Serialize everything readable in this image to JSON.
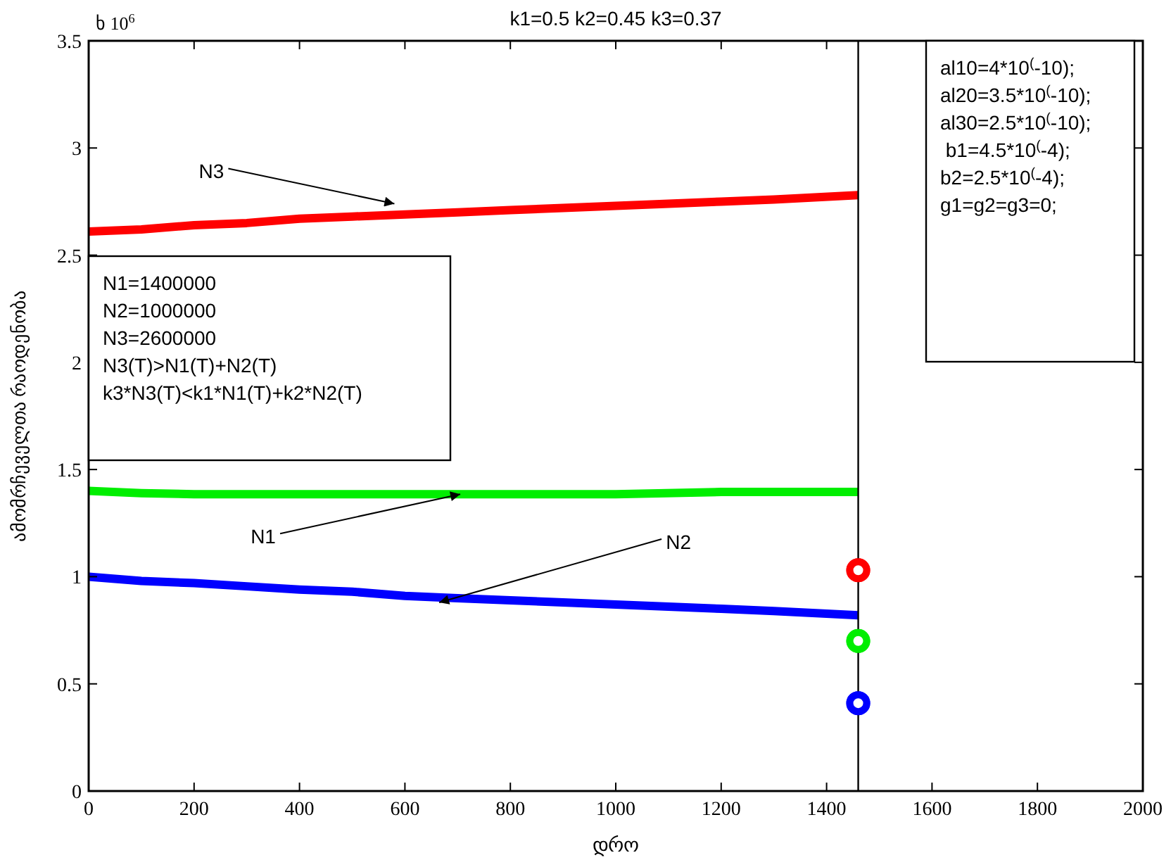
{
  "chart_data": {
    "type": "line",
    "title": "k1=0.5 k2=0.45 k3=0.37",
    "xlabel": "დრო",
    "ylabel": "ამომრჩეველთა რაოდენობა",
    "xlim": [
      0,
      2000
    ],
    "xticks": [
      0,
      200,
      400,
      600,
      800,
      1000,
      1200,
      1400,
      1600,
      1800,
      2000
    ],
    "ylim": [
      0,
      3.5
    ],
    "yticks": [
      0,
      0.5,
      1,
      1.5,
      2,
      2.5,
      3,
      3.5
    ],
    "grid": false,
    "line_style": "solid",
    "series": [
      {
        "color": "#ff0000",
        "x": [
          0,
          100,
          200,
          300,
          400,
          500,
          600,
          700,
          800,
          900,
          1000,
          1100,
          1200,
          1300,
          1460
        ],
        "values": [
          2.61,
          2.62,
          2.64,
          2.65,
          2.67,
          2.68,
          2.69,
          2.7,
          2.71,
          2.72,
          2.73,
          2.74,
          2.75,
          2.76,
          2.78
        ]
      },
      {
        "color": "#00ee00",
        "x": [
          0,
          100,
          200,
          400,
          600,
          800,
          1000,
          1200,
          1460
        ],
        "values": [
          1.4,
          1.39,
          1.385,
          1.385,
          1.385,
          1.385,
          1.385,
          1.395,
          1.395
        ]
      },
      {
        "color": "#0000ff",
        "x": [
          0,
          100,
          200,
          300,
          400,
          500,
          600,
          700,
          800,
          900,
          1000,
          1100,
          1200,
          1300,
          1460
        ],
        "values": [
          1.0,
          0.98,
          0.97,
          0.955,
          0.94,
          0.93,
          0.91,
          0.9,
          0.89,
          0.88,
          0.87,
          0.86,
          0.85,
          0.84,
          0.82
        ]
      },
      {
        "type": "scatter",
        "marker": "circle",
        "x": [
          1460
        ],
        "values": [
          1.03
        ],
        "color": "#ff0000"
      },
      {
        "type": "scatter",
        "marker": "circle",
        "x": [
          1460
        ],
        "values": [
          0.7
        ],
        "color": "#00ee00"
      },
      {
        "type": "scatter",
        "marker": "circle",
        "x": [
          1460
        ],
        "values": [
          0.41
        ],
        "color": "#0000ff"
      }
    ],
    "ref_lines": [
      {
        "axis": "x",
        "value": 1460,
        "color": "#000000"
      }
    ],
    "annotations": [
      "ხ 10$^{6}$",
      {
        "text": "N3",
        "x": 580,
        "y": 2.74
      },
      {
        "text": "N1",
        "x": 705,
        "y": 1.385
      },
      {
        "text": "N2",
        "x": 665,
        "y": 0.88
      },
      "N1=1400000\nN2=1000000\nN3=2600000\nN3(T)>N1(T)+N2(T)\nk3*N3(T)<k1*N1(T)+k2*N2(T)",
      "al10=4*10$^{(}$-10);\nal20=3.5*10$^{(}$-10);\nal30=2.5*10$^{(}$-10);\n b1=4.5*10$^{(}$-4);\nb2=2.5*10$^{(}$-4);\ng1=g2=g3=0;"
    ]
  }
}
